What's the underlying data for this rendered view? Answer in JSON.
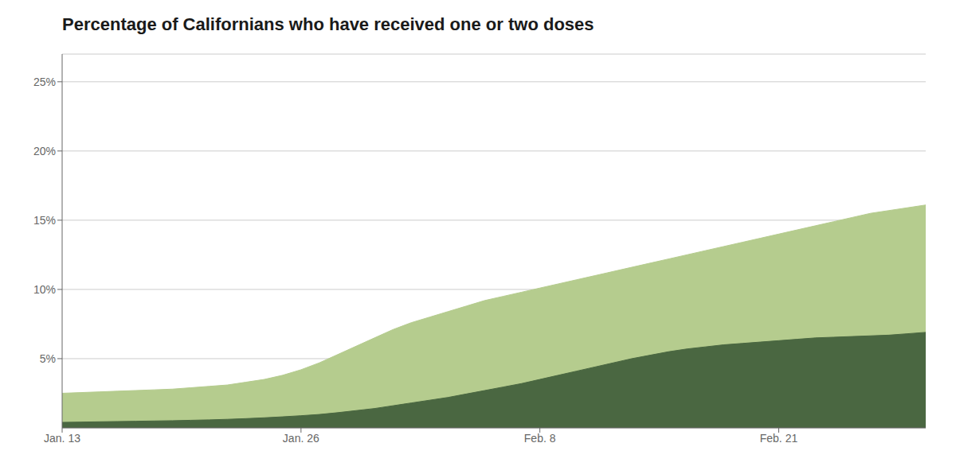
{
  "chart_data": {
    "type": "area",
    "title": "Percentage of Californians who have received one or two doses",
    "x": [
      0,
      1,
      2,
      3,
      4,
      5,
      6,
      7,
      8,
      9,
      10,
      11,
      12,
      13,
      14,
      15,
      16,
      17,
      18,
      19,
      20,
      21,
      22,
      23,
      24,
      25,
      26,
      27,
      28,
      29,
      30,
      31,
      32,
      33,
      34,
      35,
      36,
      37,
      38,
      39,
      40,
      41,
      42,
      43,
      44,
      45,
      46,
      47
    ],
    "series": [
      {
        "color": "#b5cc8e",
        "values": [
          2.5,
          2.55,
          2.6,
          2.65,
          2.7,
          2.75,
          2.8,
          2.9,
          3.0,
          3.1,
          3.3,
          3.5,
          3.8,
          4.2,
          4.7,
          5.3,
          5.9,
          6.5,
          7.1,
          7.6,
          8.0,
          8.4,
          8.8,
          9.2,
          9.5,
          9.8,
          10.1,
          10.4,
          10.7,
          11.0,
          11.3,
          11.6,
          11.9,
          12.2,
          12.5,
          12.8,
          13.1,
          13.4,
          13.7,
          14.0,
          14.3,
          14.6,
          14.9,
          15.2,
          15.5,
          15.7,
          15.9,
          16.1
        ]
      },
      {
        "color": "#4a6741",
        "values": [
          0.4,
          0.42,
          0.44,
          0.46,
          0.48,
          0.5,
          0.52,
          0.55,
          0.58,
          0.62,
          0.67,
          0.73,
          0.8,
          0.88,
          0.97,
          1.1,
          1.25,
          1.4,
          1.6,
          1.8,
          2.0,
          2.2,
          2.45,
          2.7,
          2.95,
          3.2,
          3.5,
          3.8,
          4.1,
          4.4,
          4.7,
          5.0,
          5.25,
          5.5,
          5.7,
          5.85,
          6.0,
          6.1,
          6.2,
          6.3,
          6.4,
          6.5,
          6.55,
          6.6,
          6.65,
          6.7,
          6.8,
          6.9
        ]
      }
    ],
    "xlim": [
      0,
      47
    ],
    "xticks": [
      {
        "value": 0,
        "label": "Jan. 13"
      },
      {
        "value": 13,
        "label": "Jan. 26"
      },
      {
        "value": 26,
        "label": "Feb. 8"
      },
      {
        "value": 39,
        "label": "Feb. 21"
      }
    ],
    "ylim": [
      0,
      27
    ],
    "yticks": [
      {
        "value": 5,
        "label": "5%"
      },
      {
        "value": 10,
        "label": "10%"
      },
      {
        "value": 15,
        "label": "15%"
      },
      {
        "value": 20,
        "label": "20%"
      },
      {
        "value": 25,
        "label": "25%"
      }
    ],
    "grid": "y"
  }
}
